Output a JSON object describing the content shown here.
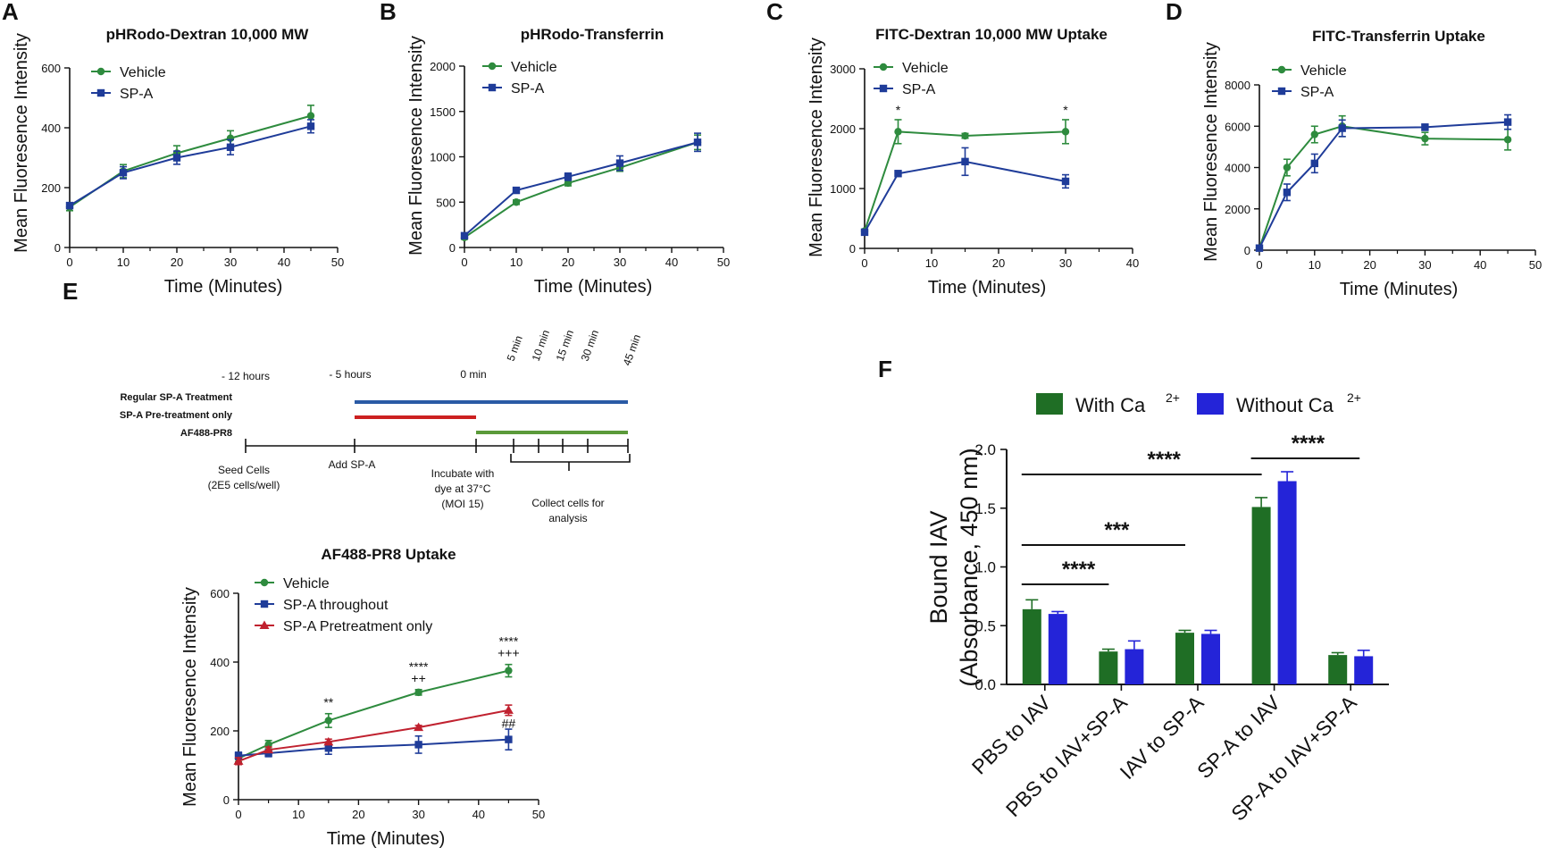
{
  "panels": {
    "A": "A",
    "B": "B",
    "C": "C",
    "D": "D",
    "E": "E",
    "F": "F"
  },
  "colors": {
    "green": "#2e8b3e",
    "blue": "#1f3c99",
    "red": "#c0212f",
    "bar_green": "#1f6e25",
    "bar_blue": "#2424d8",
    "tl_blue": "#2a5aa5",
    "tl_red": "#cc2020",
    "tl_green": "#5b9a3a"
  },
  "chart_data": [
    {
      "id": "A",
      "type": "line",
      "title": "pHRodo-Dextran 10,000 MW",
      "xlabel": "Time (Minutes)",
      "ylabel": "Mean Fluoresence Intensity",
      "xlim": [
        0,
        50
      ],
      "ylim": [
        0,
        600
      ],
      "xticks": [
        0,
        10,
        20,
        30,
        40,
        50
      ],
      "yticks": [
        0,
        200,
        400,
        600
      ],
      "legend": "top-left",
      "series": [
        {
          "name": "Vehicle",
          "color": "#2e8b3e",
          "marker": "circle",
          "x": [
            0,
            10,
            20,
            30,
            45
          ],
          "y": [
            135,
            255,
            315,
            365,
            440
          ],
          "err": [
            12,
            22,
            25,
            25,
            35
          ]
        },
        {
          "name": "SP-A",
          "color": "#1f3c99",
          "marker": "square",
          "x": [
            0,
            10,
            20,
            30,
            45
          ],
          "y": [
            140,
            250,
            300,
            335,
            405
          ],
          "err": [
            10,
            20,
            22,
            25,
            22
          ]
        }
      ]
    },
    {
      "id": "B",
      "type": "line",
      "title": "pHRodo-Transferrin",
      "xlabel": "Time (Minutes)",
      "ylabel": "Mean Fluoresence Intensity",
      "xlim": [
        0,
        50
      ],
      "ylim": [
        0,
        2000
      ],
      "xticks": [
        0,
        10,
        20,
        30,
        40,
        50
      ],
      "yticks": [
        0,
        500,
        1000,
        1500,
        2000
      ],
      "legend": "top-left",
      "series": [
        {
          "name": "Vehicle",
          "color": "#2e8b3e",
          "marker": "circle",
          "x": [
            0,
            10,
            20,
            30,
            45
          ],
          "y": [
            110,
            500,
            710,
            880,
            1160
          ],
          "err": [
            20,
            25,
            30,
            40,
            80
          ]
        },
        {
          "name": "SP-A",
          "color": "#1f3c99",
          "marker": "square",
          "x": [
            0,
            10,
            20,
            30,
            45
          ],
          "y": [
            130,
            630,
            780,
            930,
            1160
          ],
          "err": [
            20,
            30,
            40,
            80,
            100
          ]
        }
      ]
    },
    {
      "id": "C",
      "type": "line",
      "title": "FITC-Dextran 10,000 MW Uptake",
      "xlabel": "Time (Minutes)",
      "ylabel": "Mean Fluoresence Intensity",
      "xlim": [
        0,
        40
      ],
      "ylim": [
        0,
        3000
      ],
      "xticks": [
        0,
        10,
        20,
        30,
        40
      ],
      "yticks": [
        0,
        1000,
        2000,
        3000
      ],
      "legend": "top-left",
      "annotations": [
        {
          "x": 5,
          "text": "*"
        },
        {
          "x": 30,
          "text": "*"
        }
      ],
      "series": [
        {
          "name": "Vehicle",
          "color": "#2e8b3e",
          "marker": "circle",
          "x": [
            0,
            5,
            15,
            30
          ],
          "y": [
            290,
            1950,
            1880,
            1950
          ],
          "err": [
            30,
            200,
            40,
            200
          ]
        },
        {
          "name": "SP-A",
          "color": "#1f3c99",
          "marker": "square",
          "x": [
            0,
            5,
            15,
            30
          ],
          "y": [
            270,
            1250,
            1450,
            1120
          ],
          "err": [
            30,
            40,
            230,
            110
          ]
        }
      ]
    },
    {
      "id": "D",
      "type": "line",
      "title": "FITC-Transferrin Uptake",
      "xlabel": "Time (Minutes)",
      "ylabel": "Mean Fluoresence Intensity",
      "xlim": [
        0,
        50
      ],
      "ylim": [
        0,
        8000
      ],
      "xticks": [
        0,
        10,
        20,
        30,
        40,
        50
      ],
      "yticks": [
        0,
        2000,
        4000,
        6000,
        8000
      ],
      "legend": "top-left",
      "series": [
        {
          "name": "Vehicle",
          "color": "#2e8b3e",
          "marker": "circle",
          "x": [
            0,
            5,
            10,
            15,
            30,
            45
          ],
          "y": [
            100,
            4000,
            5600,
            6000,
            5400,
            5350
          ],
          "err": [
            50,
            400,
            400,
            500,
            300,
            500
          ]
        },
        {
          "name": "SP-A",
          "color": "#1f3c99",
          "marker": "square",
          "x": [
            0,
            5,
            10,
            15,
            30,
            45
          ],
          "y": [
            100,
            2800,
            4200,
            5900,
            5950,
            6200
          ],
          "err": [
            50,
            400,
            450,
            400,
            150,
            350
          ]
        }
      ]
    },
    {
      "id": "E",
      "type": "line",
      "title": "AF488-PR8 Uptake",
      "xlabel": "Time (Minutes)",
      "ylabel": "Mean Fluoresence Intensity",
      "xlim": [
        0,
        50
      ],
      "ylim": [
        0,
        600
      ],
      "xticks": [
        0,
        10,
        20,
        30,
        40,
        50
      ],
      "yticks": [
        0,
        200,
        400,
        600
      ],
      "legend": "top-left",
      "annotations": [
        {
          "x": 15,
          "lines": [
            "**"
          ]
        },
        {
          "x": 30,
          "lines": [
            "****",
            "++"
          ]
        },
        {
          "x": 45,
          "lines": [
            "****",
            "+++"
          ]
        },
        {
          "x": 45,
          "below": true,
          "lines": [
            "##"
          ]
        }
      ],
      "series": [
        {
          "name": "Vehicle",
          "color": "#2e8b3e",
          "marker": "circle",
          "x": [
            0,
            5,
            15,
            30,
            45
          ],
          "y": [
            120,
            160,
            230,
            312,
            375
          ],
          "err": [
            10,
            12,
            20,
            8,
            18
          ]
        },
        {
          "name": "SP-A throughout",
          "color": "#1f3c99",
          "marker": "square",
          "x": [
            0,
            5,
            15,
            30,
            45
          ],
          "y": [
            128,
            135,
            150,
            160,
            175
          ],
          "err": [
            10,
            10,
            18,
            25,
            30
          ]
        },
        {
          "name": "SP-A Pretreatment only",
          "color": "#c0212f",
          "marker": "triangle",
          "x": [
            0,
            5,
            15,
            30,
            45
          ],
          "y": [
            112,
            145,
            168,
            210,
            260
          ],
          "err": [
            10,
            8,
            8,
            6,
            15
          ]
        }
      ]
    },
    {
      "id": "F",
      "type": "bar",
      "ylabel_line1": "Bound IAV",
      "ylabel_line2": "(Absorbance, 450 nm)",
      "ylim": [
        0,
        2.0
      ],
      "yticks": [
        "0.0",
        "0.5",
        "1.0",
        "1.5",
        "2.0"
      ],
      "categories": [
        "PBS to IAV",
        "PBS to IAV+SP-A",
        "IAV to SP-A",
        "SP-A to IAV",
        "SP-A to IAV+SP-A"
      ],
      "legend_with": "With Ca",
      "legend_without": "Without Ca",
      "legend_sup": "2+",
      "series": [
        {
          "name": "With Ca2+",
          "color": "#1f6e25",
          "values": [
            0.64,
            0.28,
            0.44,
            1.51,
            0.25
          ],
          "err": [
            0.08,
            0.02,
            0.02,
            0.08,
            0.02
          ]
        },
        {
          "name": "Without Ca2+",
          "color": "#2424d8",
          "values": [
            0.6,
            0.3,
            0.43,
            1.73,
            0.24
          ],
          "err": [
            0.02,
            0.07,
            0.03,
            0.08,
            0.05
          ]
        }
      ],
      "significance": [
        {
          "from": 0,
          "to": 3,
          "text": "****"
        },
        {
          "from": 0,
          "to": 2,
          "text": "***"
        },
        {
          "from": 0,
          "to": 1,
          "text": "****"
        },
        {
          "from": 3,
          "to": 4,
          "text": "****"
        }
      ]
    }
  ],
  "timeline": {
    "times": [
      "- 12 hours",
      "- 5 hours",
      "0 min"
    ],
    "rotated": [
      "5 min",
      "10 min",
      "15 min",
      "30 min",
      "45 min"
    ],
    "rows": [
      "Regular SP-A Treatment",
      "SP-A Pre-treatment only",
      "AF488-PR8"
    ],
    "steps": {
      "seed": [
        "Seed Cells",
        "(2E5 cells/well)"
      ],
      "add": [
        "Add SP-A"
      ],
      "incubate": [
        "Incubate with",
        "dye at 37°C",
        "(MOI 15)"
      ],
      "collect": [
        "Collect cells for",
        "analysis"
      ]
    }
  }
}
